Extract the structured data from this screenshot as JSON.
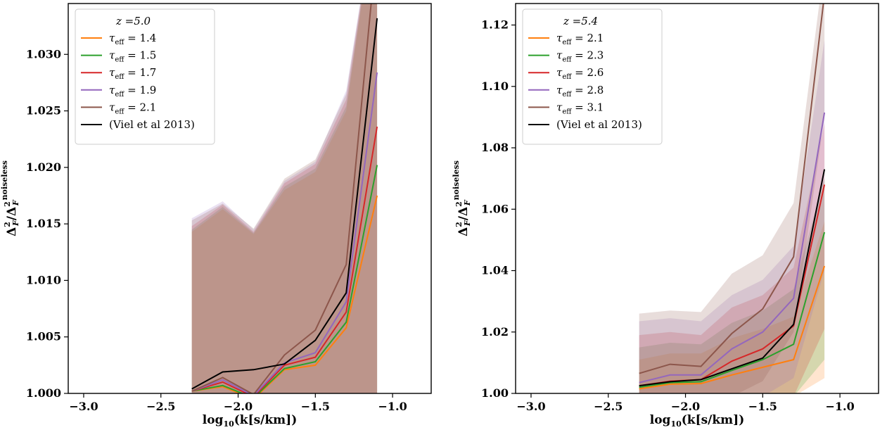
{
  "figure": {
    "xlabel_main": "log",
    "xlabel_sub": "10",
    "xlabel_rest": "(k[s/km])",
    "ylabel_main": "Δ",
    "ylabel_sup": "2",
    "ylabel_sub": "F",
    "ylabel_sep": "/Δ",
    "ylabel_sup2": "2",
    "ylabel_sub2": "F",
    "ylabel_noiseless": "noiseless"
  },
  "colors": {
    "orange": "#ff7f0e",
    "green": "#2ca02c",
    "red": "#d62728",
    "purple": "#9467bd",
    "brown": "#8c564b",
    "black": "#000000"
  },
  "chart_data": [
    {
      "type": "line",
      "legend_title": "z =5.0",
      "legend_placement": "top-left",
      "grid": false,
      "xlim": [
        -3.1,
        -0.75
      ],
      "ylim": [
        1.0,
        1.0345
      ],
      "xticks": [
        -3.0,
        -2.5,
        -2.0,
        -1.5,
        -1.0
      ],
      "xtick_labels": [
        "−3.0",
        "−2.5",
        "−2.0",
        "−1.5",
        "−1.0"
      ],
      "yticks": [
        1.0,
        1.005,
        1.01,
        1.015,
        1.02,
        1.025,
        1.03
      ],
      "ytick_labels": [
        "1.000",
        "1.005",
        "1.010",
        "1.015",
        "1.020",
        "1.025",
        "1.030"
      ],
      "x": [
        -2.3,
        -2.1,
        -1.9,
        -1.7,
        -1.5,
        -1.3,
        -1.1
      ],
      "series": [
        {
          "name": "τ_eff = 1.4",
          "label_pre": "τ",
          "label_sub": "eff",
          "label_post": " = 1.4",
          "color": "orange",
          "values": [
            1.0002,
            1.0006,
            0.9995,
            1.0021,
            1.0025,
            1.0058,
            1.0175
          ],
          "band_upper": [
            1.0143,
            1.0163,
            1.0141,
            1.018,
            1.0196,
            1.025,
            1.044
          ],
          "band_lower": [
            0.999,
            0.999,
            0.999,
            0.999,
            0.999,
            0.999,
            0.999
          ]
        },
        {
          "name": "τ_eff = 1.5",
          "label_pre": "τ",
          "label_sub": "eff",
          "label_post": " = 1.5",
          "color": "green",
          "values": [
            1.0002,
            1.0007,
            0.9996,
            1.0022,
            1.0028,
            1.0063,
            1.0202
          ],
          "band_upper": [
            1.0145,
            1.0165,
            1.0142,
            1.0183,
            1.0199,
            1.0254,
            1.044
          ],
          "band_lower": [
            0.999,
            0.999,
            0.999,
            0.999,
            0.999,
            0.999,
            0.999
          ]
        },
        {
          "name": "τ_eff = 1.7",
          "label_pre": "τ",
          "label_sub": "eff",
          "label_post": " = 1.7",
          "color": "red",
          "values": [
            1.0002,
            1.001,
            0.9997,
            1.0025,
            1.0032,
            1.0072,
            1.0236
          ],
          "band_upper": [
            1.0148,
            1.0167,
            1.0143,
            1.0186,
            1.0203,
            1.026,
            1.044
          ],
          "band_lower": [
            0.999,
            0.999,
            0.999,
            0.999,
            0.999,
            0.999,
            0.999
          ]
        },
        {
          "name": "τ_eff = 1.9",
          "label_pre": "τ",
          "label_sub": "eff",
          "label_post": " = 1.9",
          "color": "purple",
          "values": [
            1.0002,
            1.0012,
            0.9998,
            1.0027,
            1.0036,
            1.0081,
            1.0284
          ],
          "band_upper": [
            1.0155,
            1.017,
            1.0145,
            1.0188,
            1.0205,
            1.0268,
            1.044
          ],
          "band_lower": [
            0.999,
            0.999,
            0.999,
            0.999,
            0.999,
            0.999,
            0.999
          ]
        },
        {
          "name": "τ_eff = 2.1",
          "label_pre": "τ",
          "label_sub": "eff",
          "label_post": " = 2.1",
          "color": "brown",
          "values": [
            1.0002,
            1.0014,
            0.9999,
            1.0034,
            1.0056,
            1.0114,
            1.04
          ],
          "band_upper": [
            1.0153,
            1.0168,
            1.0146,
            1.019,
            1.0207,
            1.0265,
            1.044
          ],
          "band_lower": [
            0.999,
            0.999,
            0.999,
            0.999,
            0.999,
            0.999,
            0.999
          ]
        },
        {
          "name": "(Viel et al 2013)",
          "label_pre": "(Viel et al 2013)",
          "label_sub": "",
          "label_post": "",
          "color": "black",
          "values": [
            1.0004,
            1.0019,
            1.0021,
            1.0026,
            1.0047,
            1.0089,
            1.0332
          ]
        }
      ]
    },
    {
      "type": "line",
      "legend_title": "z =5.4",
      "legend_placement": "top-left",
      "grid": false,
      "xlim": [
        -3.1,
        -0.75
      ],
      "ylim": [
        1.0,
        1.127
      ],
      "xticks": [
        -3.0,
        -2.5,
        -2.0,
        -1.5,
        -1.0
      ],
      "xtick_labels": [
        "−3.0",
        "−2.5",
        "−2.0",
        "−1.5",
        "−1.0"
      ],
      "yticks": [
        1.0,
        1.02,
        1.04,
        1.06,
        1.08,
        1.1,
        1.12
      ],
      "ytick_labels": [
        "1.00",
        "1.02",
        "1.04",
        "1.06",
        "1.08",
        "1.10",
        "1.12"
      ],
      "x": [
        -2.3,
        -2.1,
        -1.9,
        -1.7,
        -1.5,
        -1.3,
        -1.1
      ],
      "series": [
        {
          "name": "τ_eff = 2.1",
          "label_pre": "τ",
          "label_sub": "eff",
          "label_post": " = 2.1",
          "color": "orange",
          "values": [
            1.0015,
            1.003,
            1.0032,
            1.006,
            1.0085,
            1.011,
            1.0415
          ],
          "band_upper": [
            1.011,
            1.013,
            1.013,
            1.018,
            1.021,
            1.025,
            1.056
          ],
          "band_lower": [
            0.999,
            0.999,
            0.999,
            0.999,
            0.999,
            0.999,
            1.005
          ]
        },
        {
          "name": "τ_eff = 2.3",
          "label_pre": "τ",
          "label_sub": "eff",
          "label_post": " = 2.3",
          "color": "green",
          "values": [
            1.002,
            1.0035,
            1.0038,
            1.0075,
            1.011,
            1.016,
            1.0525
          ],
          "band_upper": [
            1.015,
            1.0165,
            1.016,
            1.023,
            1.027,
            1.034,
            1.07
          ],
          "band_lower": [
            0.999,
            0.999,
            0.999,
            0.999,
            0.999,
            0.999,
            1.011
          ]
        },
        {
          "name": "τ_eff = 2.6",
          "label_pre": "τ",
          "label_sub": "eff",
          "label_post": " = 2.6",
          "color": "red",
          "values": [
            1.0025,
            1.004,
            1.0045,
            1.0105,
            1.0145,
            1.022,
            1.068
          ],
          "band_upper": [
            1.019,
            1.02,
            1.019,
            1.028,
            1.032,
            1.041,
            1.088
          ],
          "band_lower": [
            0.999,
            0.999,
            0.999,
            0.999,
            0.999,
            0.999,
            1.021
          ]
        },
        {
          "name": "τ_eff = 2.8",
          "label_pre": "τ",
          "label_sub": "eff",
          "label_post": " = 2.8",
          "color": "purple",
          "values": [
            1.0035,
            1.006,
            1.006,
            1.0145,
            1.02,
            1.031,
            1.0915
          ],
          "band_upper": [
            1.0235,
            1.0245,
            1.0235,
            1.032,
            1.037,
            1.048,
            1.115
          ],
          "band_lower": [
            0.999,
            0.999,
            0.999,
            0.999,
            0.999,
            1.005,
            1.04
          ]
        },
        {
          "name": "τ_eff = 3.1",
          "label_pre": "τ",
          "label_sub": "eff",
          "label_post": " = 3.1",
          "color": "brown",
          "values": [
            1.0065,
            1.0095,
            1.0088,
            1.0195,
            1.0275,
            1.0445,
            1.13
          ],
          "band_upper": [
            1.026,
            1.027,
            1.0265,
            1.039,
            1.045,
            1.062,
            1.14
          ],
          "band_lower": [
            0.999,
            0.999,
            0.999,
            0.999,
            1.004,
            1.02,
            1.09
          ]
        },
        {
          "name": "(Viel et al 2013)",
          "label_pre": "(Viel et al 2013)",
          "label_sub": "",
          "label_post": "",
          "color": "black",
          "values": [
            1.0025,
            1.0038,
            1.0045,
            1.008,
            1.0115,
            1.0225,
            1.073
          ]
        }
      ]
    }
  ]
}
